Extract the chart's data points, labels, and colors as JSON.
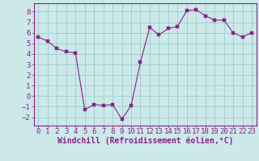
{
  "x": [
    0,
    1,
    2,
    3,
    4,
    5,
    6,
    7,
    8,
    9,
    10,
    11,
    12,
    13,
    14,
    15,
    16,
    17,
    18,
    19,
    20,
    21,
    22,
    23
  ],
  "y": [
    5.6,
    5.2,
    4.5,
    4.2,
    4.1,
    -1.3,
    -0.8,
    -0.9,
    -0.8,
    -2.2,
    -0.9,
    3.2,
    6.5,
    5.8,
    6.4,
    6.6,
    8.1,
    8.2,
    7.6,
    7.2,
    7.2,
    6.0,
    5.6,
    6.0
  ],
  "line_color": "#882288",
  "marker_color": "#882288",
  "bg_color": "#cce8e8",
  "grid_color": "#99cccc",
  "axis_color": "#882288",
  "tick_color": "#882288",
  "xlabel": "Windchill (Refroidissement éolien,°C)",
  "xlabel_color": "#882288",
  "ylim": [
    -2.8,
    8.8
  ],
  "xlim": [
    -0.5,
    23.5
  ],
  "yticks": [
    -2,
    -1,
    0,
    1,
    2,
    3,
    4,
    5,
    6,
    7,
    8
  ],
  "xticks": [
    0,
    1,
    2,
    3,
    4,
    5,
    6,
    7,
    8,
    9,
    10,
    11,
    12,
    13,
    14,
    15,
    16,
    17,
    18,
    19,
    20,
    21,
    22,
    23
  ],
  "font_size": 6.5,
  "xlabel_font_size": 7.0,
  "marker_size": 2.5,
  "line_width": 0.8
}
